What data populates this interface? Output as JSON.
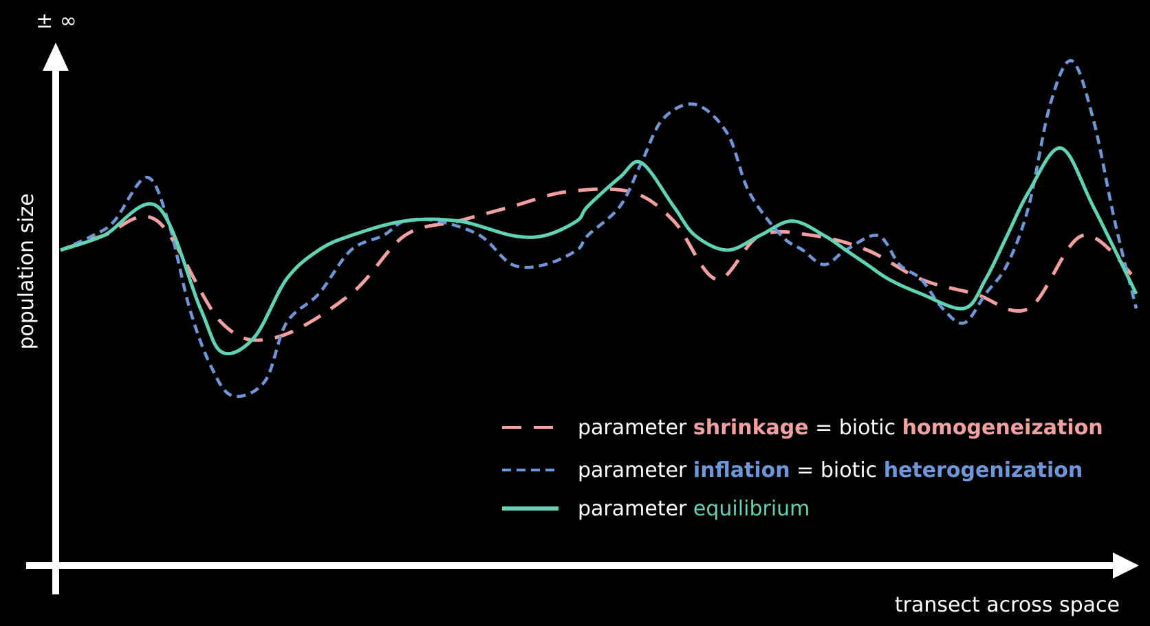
{
  "chart_data": {
    "type": "line",
    "ylabel": "population size",
    "xlabel": "transect across space",
    "y_top_label": "± ∞",
    "colors": {
      "shrinkage": "#f4a0a0",
      "inflation": "#6f96d8",
      "equilibrium": "#5fd3b4",
      "axis": "#ffffff"
    },
    "series": [
      {
        "key": "shrinkage",
        "style": "long-dash",
        "x": [
          0,
          4,
          9,
          15,
          20,
          27,
          32,
          37,
          42,
          47,
          53,
          57,
          61,
          65,
          70,
          75,
          80,
          85,
          90,
          95,
          100
        ],
        "y": [
          0,
          1,
          2,
          -5,
          -6,
          -3,
          1,
          2,
          3,
          4,
          4,
          2,
          -2,
          1,
          1,
          0,
          -2,
          -3,
          -4,
          1,
          -2
        ]
      },
      {
        "key": "inflation",
        "style": "short-dash",
        "x": [
          0,
          3,
          5,
          8,
          10,
          12,
          14,
          16,
          19,
          21,
          24,
          27,
          30,
          32,
          35,
          39,
          42,
          45,
          48,
          49,
          52,
          54,
          56,
          59,
          62,
          64,
          67,
          69,
          71,
          73,
          76,
          78,
          80,
          82,
          84,
          86,
          88,
          90,
          92,
          94,
          96,
          98,
          100
        ],
        "y": [
          0,
          1,
          2,
          5,
          2,
          -4,
          -8,
          -10,
          -9,
          -5,
          -3,
          0,
          1,
          2,
          2,
          1,
          -1,
          -1,
          0,
          1,
          3,
          6,
          9,
          10,
          8,
          4,
          1,
          0,
          -1,
          0,
          1,
          -1,
          -2,
          -4,
          -5,
          -3,
          -1,
          3,
          10,
          13,
          9,
          2,
          -4
        ]
      },
      {
        "key": "equilibrium",
        "style": "solid",
        "x": [
          0,
          4,
          9,
          13,
          15,
          18,
          21,
          24,
          27,
          32,
          37,
          42,
          45,
          48,
          49,
          52,
          54,
          57,
          59,
          62,
          65,
          68,
          71,
          73,
          75,
          77,
          80,
          84,
          86,
          88,
          90,
          93,
          96,
          100
        ],
        "y": [
          0,
          1,
          3,
          -4,
          -7,
          -6,
          -2,
          0,
          1,
          2,
          2,
          1,
          1,
          2,
          3,
          5,
          6,
          3,
          1,
          0,
          1,
          2,
          1,
          0,
          -1,
          -2,
          -3,
          -4,
          -2,
          1,
          4,
          7,
          3,
          -3
        ]
      }
    ],
    "legend": {
      "placement": "bottom-right",
      "items": [
        {
          "key": "shrinkage",
          "prefix": "parameter ",
          "term": "shrinkage",
          "middle": " = biotic ",
          "term2": "homogeneization"
        },
        {
          "key": "inflation",
          "prefix": "parameter ",
          "term": "inflation",
          "middle": " = biotic ",
          "term2": "heterogenization"
        },
        {
          "key": "equilibrium",
          "prefix": "parameter ",
          "term": "equilibrium",
          "middle": "",
          "term2": ""
        }
      ]
    }
  }
}
